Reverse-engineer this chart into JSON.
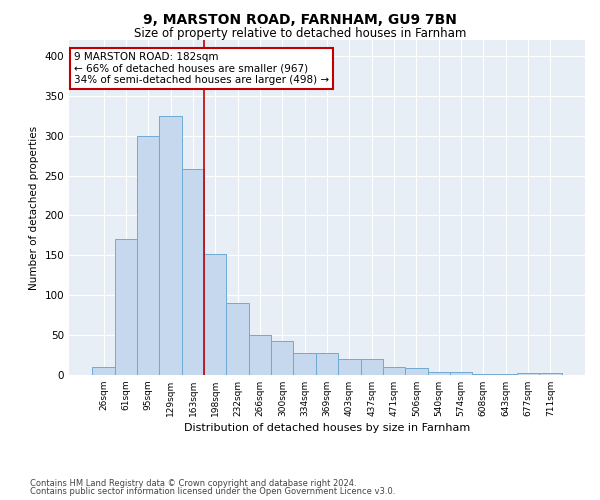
{
  "title1": "9, MARSTON ROAD, FARNHAM, GU9 7BN",
  "title2": "Size of property relative to detached houses in Farnham",
  "xlabel": "Distribution of detached houses by size in Farnham",
  "ylabel": "Number of detached properties",
  "categories": [
    "26sqm",
    "61sqm",
    "95sqm",
    "129sqm",
    "163sqm",
    "198sqm",
    "232sqm",
    "266sqm",
    "300sqm",
    "334sqm",
    "369sqm",
    "403sqm",
    "437sqm",
    "471sqm",
    "506sqm",
    "540sqm",
    "574sqm",
    "608sqm",
    "643sqm",
    "677sqm",
    "711sqm"
  ],
  "values": [
    10,
    170,
    300,
    325,
    258,
    152,
    90,
    50,
    43,
    27,
    27,
    20,
    20,
    10,
    9,
    4,
    4,
    1,
    1,
    3,
    3
  ],
  "bar_color": "#c5d8ee",
  "bar_edge_color": "#6faad4",
  "vline_index": 4,
  "vline_color": "#c00000",
  "annotation_line1": "9 MARSTON ROAD: 182sqm",
  "annotation_line2": "← 66% of detached houses are smaller (967)",
  "annotation_line3": "34% of semi-detached houses are larger (498) →",
  "annotation_box_color": "white",
  "annotation_box_edge_color": "#c00000",
  "ylim": [
    0,
    420
  ],
  "yticks": [
    0,
    50,
    100,
    150,
    200,
    250,
    300,
    350,
    400
  ],
  "bg_color": "#e8eef6",
  "grid_color": "white",
  "footer1": "Contains HM Land Registry data © Crown copyright and database right 2024.",
  "footer2": "Contains public sector information licensed under the Open Government Licence v3.0."
}
